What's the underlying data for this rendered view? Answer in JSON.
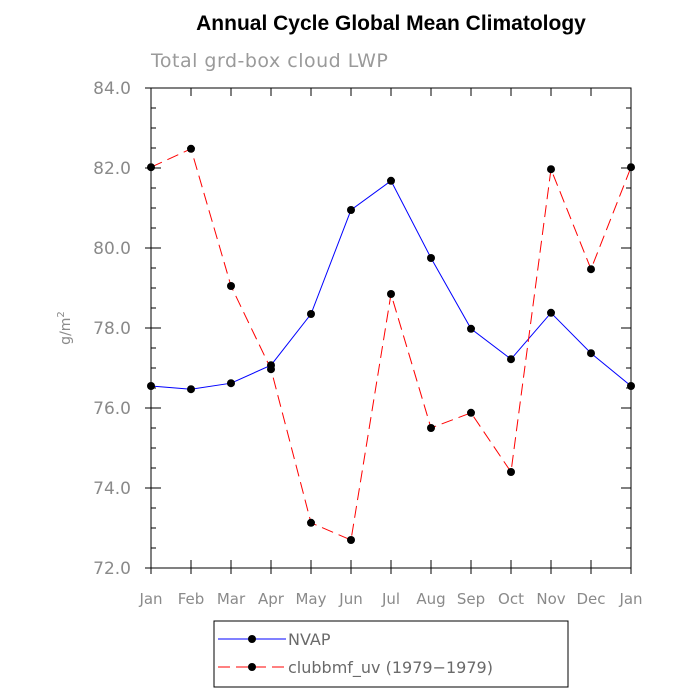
{
  "chart_data": {
    "type": "line",
    "title": "Annual Cycle Global Mean Climatology",
    "subtitle": "Total grd-box cloud LWP",
    "ylabel": "g/m",
    "ylabel_superscript": "2",
    "ylim": [
      72.0,
      84.0
    ],
    "y_ticks": [
      "72.0",
      "74.0",
      "76.0",
      "78.0",
      "80.0",
      "82.0",
      "84.0"
    ],
    "categories": [
      "Jan",
      "Feb",
      "Mar",
      "Apr",
      "May",
      "Jun",
      "Jul",
      "Aug",
      "Sep",
      "Oct",
      "Nov",
      "Dec",
      "Jan"
    ],
    "series": [
      {
        "name": "NVAP",
        "color": "#0000ff",
        "dash": "solid",
        "values": [
          76.55,
          76.47,
          76.62,
          77.07,
          78.35,
          80.95,
          81.68,
          79.75,
          77.98,
          77.22,
          78.38,
          77.37,
          76.55
        ]
      },
      {
        "name": "clubbmf_uv (1979-1979)",
        "color": "#ff0000",
        "dash": "dashed",
        "values": [
          82.02,
          82.48,
          79.05,
          76.97,
          73.13,
          72.7,
          78.85,
          75.5,
          75.88,
          74.4,
          81.97,
          79.47,
          82.02
        ]
      }
    ],
    "legend": [
      "NVAP",
      "clubbmf_uv (1979−1979)"
    ]
  }
}
